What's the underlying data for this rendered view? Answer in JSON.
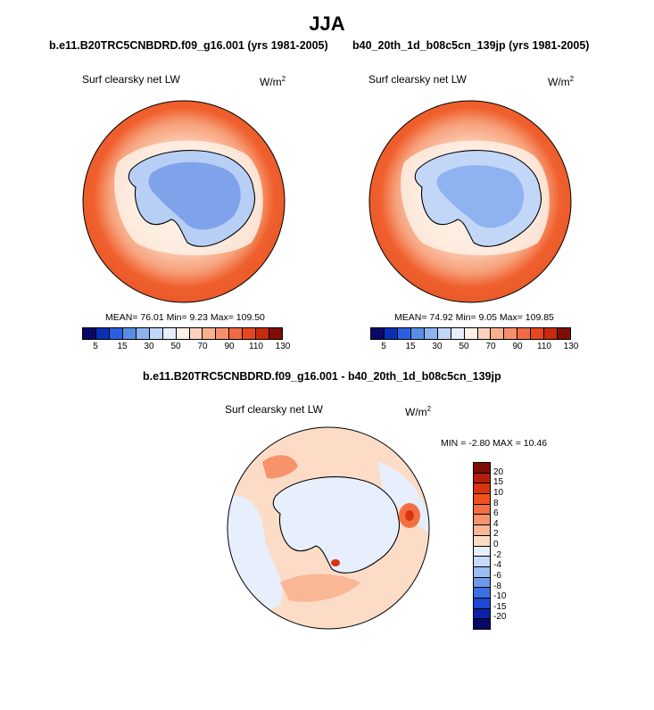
{
  "title": "JJA",
  "panels": [
    {
      "case": "b.e11.B20TRC5CNBDRD.f09_g16.001 (yrs 1981-2005)",
      "variable": "Surf clearsky net LW",
      "units_base": "W/m",
      "units_exp": "2",
      "stats": "MEAN=  76.01  Min=   9.23  Max= 109.50"
    },
    {
      "case": "b40_20th_1d_b08c5cn_139jp (yrs 1981-2005)",
      "variable": "Surf clearsky net LW",
      "units_base": "W/m",
      "units_exp": "2",
      "stats": "MEAN=  74.92  Min=   9.05  Max= 109.85"
    }
  ],
  "diff": {
    "title": "b.e11.B20TRC5CNBDRD.f09_g16.001 - b40_20th_1d_b08c5cn_139jp",
    "variable": "Surf clearsky net LW",
    "units_base": "W/m",
    "units_exp": "2",
    "stats": "MIN =  -2.80 MAX =  10.46"
  },
  "colorbar": {
    "labels": [
      "5",
      "15",
      "30",
      "50",
      "70",
      "90",
      "110",
      "130"
    ],
    "colors": [
      "#08086b",
      "#0a2fb5",
      "#2a5fe0",
      "#5a8de8",
      "#8fb2f0",
      "#c2d6f7",
      "#e6effb",
      "#fdf1e6",
      "#fcd3bd",
      "#f9b08f",
      "#f58f6c",
      "#f16a44",
      "#e8461d",
      "#c72a0e",
      "#7f0d06"
    ]
  },
  "diff_colorbar": {
    "labels": [
      "20",
      "15",
      "10",
      "8",
      "6",
      "4",
      "2",
      "0",
      "-2",
      "-4",
      "-6",
      "-8",
      "-10",
      "-15",
      "-20"
    ],
    "colors": [
      "#7f0d06",
      "#b41d0c",
      "#d93310",
      "#f0521c",
      "#f36f43",
      "#f7936b",
      "#fab795",
      "#fcdcc7",
      "#e6effb",
      "#c7daf7",
      "#9dbcf1",
      "#6e98ea",
      "#3d6fe3",
      "#1f47d2",
      "#0b22a8",
      "#08086b"
    ]
  }
}
